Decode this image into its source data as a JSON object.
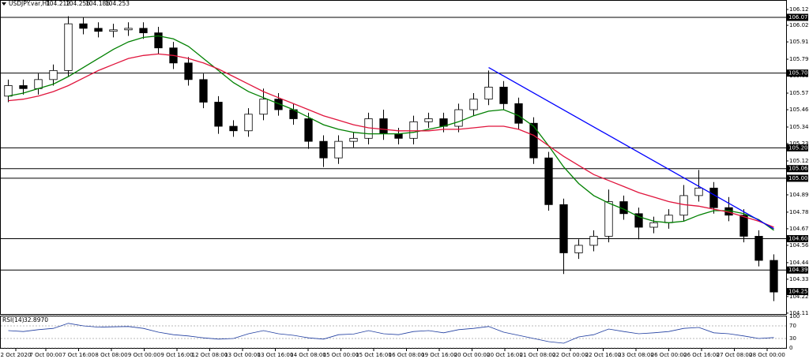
{
  "chart_data": {
    "type": "candlestick",
    "symbol": "USDJPY.var,H1",
    "header_prices": [
      104.212,
      104.256,
      104.186,
      104.253
    ],
    "open": [
      105.55,
      105.62,
      105.6,
      105.66,
      105.72,
      106.03,
      106.0,
      105.98,
      105.99,
      106.0,
      105.97,
      105.87,
      105.77,
      105.66,
      105.51,
      105.35,
      105.32,
      105.43,
      105.53,
      105.46,
      105.4,
      105.25,
      105.14,
      105.25,
      105.27,
      105.4,
      105.3,
      105.27,
      105.38,
      105.4,
      105.35,
      105.46,
      105.53,
      105.61,
      105.5,
      105.37,
      105.14,
      104.83,
      104.51,
      104.56,
      104.62,
      104.85,
      104.77,
      104.68,
      104.71,
      104.76,
      104.89,
      104.94,
      104.81,
      104.76,
      104.62,
      104.46
    ],
    "high": [
      105.66,
      105.66,
      105.7,
      105.76,
      106.08,
      106.07,
      106.04,
      106.03,
      106.04,
      106.04,
      106.01,
      105.91,
      105.81,
      105.7,
      105.55,
      105.39,
      105.47,
      105.6,
      105.57,
      105.5,
      105.44,
      105.29,
      105.29,
      105.31,
      105.44,
      105.46,
      105.34,
      105.42,
      105.44,
      105.44,
      105.5,
      105.57,
      105.72,
      105.65,
      105.54,
      105.41,
      105.18,
      104.87,
      104.6,
      104.66,
      104.93,
      104.89,
      104.81,
      104.75,
      104.8,
      104.96,
      105.06,
      104.98,
      104.88,
      104.8,
      104.66,
      104.5
    ],
    "low": [
      105.51,
      105.56,
      105.56,
      105.62,
      105.68,
      105.96,
      105.94,
      105.94,
      105.95,
      105.93,
      105.83,
      105.73,
      105.62,
      105.47,
      105.3,
      105.28,
      105.28,
      105.39,
      105.42,
      105.36,
      105.2,
      105.08,
      105.1,
      105.21,
      105.23,
      105.26,
      105.23,
      105.23,
      105.34,
      105.31,
      105.31,
      105.42,
      105.49,
      105.46,
      105.33,
      105.1,
      104.79,
      104.37,
      104.47,
      104.52,
      104.58,
      104.73,
      104.6,
      104.64,
      104.67,
      104.72,
      104.85,
      104.77,
      104.72,
      104.58,
      104.42,
      104.19
    ],
    "close": [
      105.62,
      105.6,
      105.66,
      105.72,
      106.03,
      106.0,
      105.98,
      105.99,
      106.0,
      105.97,
      105.87,
      105.77,
      105.66,
      105.51,
      105.35,
      105.32,
      105.43,
      105.53,
      105.46,
      105.4,
      105.25,
      105.14,
      105.25,
      105.27,
      105.4,
      105.3,
      105.27,
      105.38,
      105.4,
      105.35,
      105.46,
      105.53,
      105.61,
      105.5,
      105.37,
      105.14,
      104.83,
      104.51,
      104.56,
      104.62,
      104.85,
      104.77,
      104.68,
      104.71,
      104.76,
      104.89,
      104.94,
      104.81,
      104.76,
      104.62,
      104.46,
      104.25
    ],
    "series": [
      {
        "color": "#008000",
        "values": [
          105.55,
          105.57,
          105.6,
          105.63,
          105.68,
          105.74,
          105.8,
          105.86,
          105.91,
          105.94,
          105.95,
          105.93,
          105.88,
          105.8,
          105.72,
          105.64,
          105.58,
          105.54,
          105.5,
          105.46,
          105.41,
          105.36,
          105.33,
          105.31,
          105.3,
          105.3,
          105.3,
          105.31,
          105.33,
          105.35,
          105.38,
          105.42,
          105.45,
          105.46,
          105.42,
          105.35,
          105.22,
          105.08,
          104.97,
          104.89,
          104.84,
          104.8,
          104.75,
          104.72,
          104.71,
          104.72,
          104.76,
          104.79,
          104.79,
          104.77,
          104.73,
          104.66
        ]
      },
      {
        "color": "#e0143c",
        "values": [
          105.52,
          105.53,
          105.55,
          105.58,
          105.62,
          105.67,
          105.72,
          105.76,
          105.8,
          105.82,
          105.83,
          105.82,
          105.8,
          105.77,
          105.73,
          105.68,
          105.63,
          105.58,
          105.54,
          105.5,
          105.46,
          105.42,
          105.39,
          105.36,
          105.34,
          105.33,
          105.32,
          105.32,
          105.32,
          105.33,
          105.33,
          105.34,
          105.35,
          105.35,
          105.33,
          105.29,
          105.22,
          105.15,
          105.09,
          105.03,
          104.99,
          104.95,
          104.91,
          104.88,
          104.85,
          104.83,
          104.82,
          104.8,
          104.78,
          104.75,
          104.72,
          104.68
        ]
      }
    ],
    "trendline": {
      "color": "#0000ff",
      "x": [
        32,
        51
      ],
      "values": [
        105.74,
        104.67
      ]
    },
    "levels": [
      106.073,
      105.703,
      105.207,
      105.069,
      105.005,
      104.604,
      104.396
    ],
    "current_price": 104.253,
    "ylim": [
      104.104,
      106.188
    ],
    "yticks": [
      {
        "value": 106.125,
        "label": "106.125"
      },
      {
        "value": 106.02,
        "label": "106.020"
      },
      {
        "value": 105.91,
        "label": "105.910"
      },
      {
        "value": 105.795,
        "label": "105.795"
      },
      {
        "value": 105.685,
        "label": "105.685"
      },
      {
        "value": 105.57,
        "label": "105.570"
      },
      {
        "value": 105.46,
        "label": "105.460"
      },
      {
        "value": 105.345,
        "label": "105.345"
      },
      {
        "value": 105.235,
        "label": "105.235"
      },
      {
        "value": 105.12,
        "label": "105.120"
      },
      {
        "value": 104.895,
        "label": "104.895"
      },
      {
        "value": 104.78,
        "label": "104.780"
      },
      {
        "value": 104.67,
        "label": "104.670"
      },
      {
        "value": 104.56,
        "label": "104.560"
      },
      {
        "value": 104.445,
        "label": "104.445"
      },
      {
        "value": 104.335,
        "label": "104.335"
      },
      {
        "value": 104.22,
        "label": "104.220"
      },
      {
        "value": 104.11,
        "label": "104.110"
      }
    ],
    "xticks": [
      "2 Oct 2020",
      "7 Oct 00:00",
      "7 Oct 16:00",
      "8 Oct 08:00",
      "9 Oct 00:00",
      "9 Oct 16:00",
      "12 Oct 08:00",
      "13 Oct 00:00",
      "13 Oct 16:00",
      "14 Oct 08:00",
      "15 Oct 00:00",
      "15 Oct 16:00",
      "16 Oct 08:00",
      "19 Oct 16:00",
      "20 Oct 00:00",
      "20 Oct 16:00",
      "21 Oct 08:00",
      "22 Oct 00:00",
      "22 Oct 16:00",
      "23 Oct 08:00",
      "26 Oct 00:00",
      "26 Oct 16:00",
      "27 Oct 08:00",
      "28 Oct 00:00"
    ],
    "rsi": {
      "name": "RSI(14)",
      "color": "#1e3ca0",
      "values": [
        55,
        52,
        58,
        62,
        78,
        70,
        66,
        67,
        68,
        62,
        50,
        42,
        38,
        32,
        28,
        30,
        45,
        55,
        45,
        40,
        32,
        28,
        42,
        44,
        55,
        45,
        42,
        52,
        55,
        48,
        58,
        62,
        68,
        50,
        40,
        30,
        20,
        15,
        35,
        42,
        60,
        52,
        45,
        48,
        52,
        62,
        65,
        48,
        45,
        38,
        30,
        32.897
      ],
      "value_label": "32.8970",
      "ylim": [
        0,
        100
      ],
      "yticks": [
        100,
        70,
        30,
        0
      ]
    }
  }
}
